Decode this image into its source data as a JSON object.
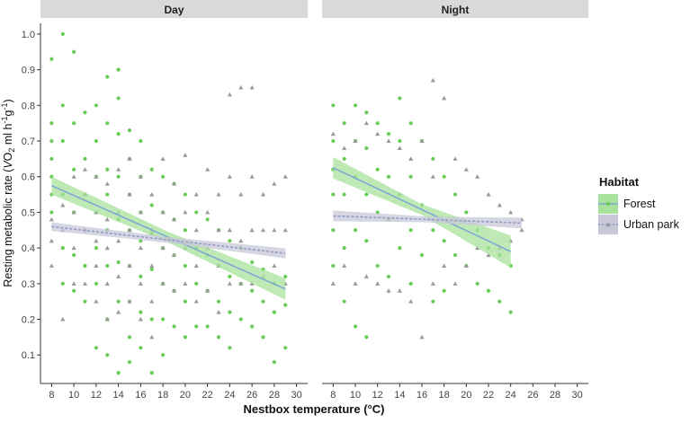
{
  "chart_data": {
    "type": "scatter",
    "panels": [
      {
        "name": "Day",
        "xlim": [
          7,
          31
        ],
        "xticks": [
          8,
          10,
          12,
          14,
          16,
          18,
          20,
          22,
          24,
          26,
          28,
          30
        ]
      },
      {
        "name": "Night",
        "xlim": [
          7,
          31
        ],
        "xticks": [
          8,
          10,
          12,
          14,
          16,
          18,
          20,
          22,
          24,
          26,
          28,
          30
        ]
      }
    ],
    "ylim": [
      0.02,
      1.03
    ],
    "yticks": [
      "0.1",
      "0.2",
      "0.3",
      "0.4",
      "0.5",
      "0.6",
      "0.7",
      "0.8",
      "0.9",
      "1.0"
    ],
    "xlabel": "Nestbox temperature (°C)",
    "ylabel": {
      "main": "Resting metabolic rate (",
      "italic": "V",
      "o2": "O",
      "o2sub": "2",
      "unit": " ml h",
      "exp1": "-1",
      "g": "g",
      "exp2": "-1",
      "close": ")"
    },
    "legend": {
      "title": "Habitat",
      "position": "right",
      "entries": [
        {
          "name": "Forest",
          "color": "#66cc55",
          "band": "#a8e29c",
          "line": "#7aa6d4",
          "shape": "circle"
        },
        {
          "name": "Urban park",
          "color": "#9a9a9a",
          "band": "#c8c8d8",
          "line": "#8f98c4",
          "shape": "triangle"
        }
      ]
    },
    "fits": [
      {
        "panel": "Day",
        "group": "Forest",
        "x": [
          8,
          29
        ],
        "y": [
          0.575,
          0.285
        ],
        "ci_halfwidth": [
          0.025,
          0.015,
          0.03
        ]
      },
      {
        "panel": "Day",
        "group": "Urban park",
        "x": [
          8,
          29
        ],
        "y": [
          0.46,
          0.385
        ],
        "ci_halfwidth": [
          0.012,
          0.008,
          0.014
        ]
      },
      {
        "panel": "Night",
        "group": "Forest",
        "x": [
          8,
          24
        ],
        "y": [
          0.625,
          0.39
        ],
        "ci_halfwidth": [
          0.03,
          0.015,
          0.045
        ]
      },
      {
        "panel": "Night",
        "group": "Urban park",
        "x": [
          8,
          25
        ],
        "y": [
          0.49,
          0.47
        ],
        "ci_halfwidth": [
          0.015,
          0.008,
          0.015
        ]
      }
    ],
    "series": [
      {
        "panel": "Day",
        "name": "Forest",
        "x": [
          8,
          8,
          8,
          8,
          8,
          8,
          8,
          9,
          9,
          9,
          9,
          9,
          9,
          10,
          10,
          10,
          10,
          10,
          10,
          11,
          11,
          11,
          11,
          11,
          11,
          12,
          12,
          12,
          12,
          12,
          12,
          12,
          13,
          13,
          13,
          13,
          13,
          13,
          13,
          13,
          14,
          14,
          14,
          14,
          14,
          14,
          14,
          14,
          15,
          15,
          15,
          15,
          15,
          15,
          15,
          15,
          16,
          16,
          16,
          16,
          16,
          16,
          16,
          17,
          17,
          17,
          17,
          17,
          17,
          18,
          18,
          18,
          18,
          18,
          18,
          19,
          19,
          19,
          19,
          19,
          20,
          20,
          20,
          20,
          20,
          21,
          21,
          21,
          21,
          22,
          22,
          22,
          22,
          23,
          23,
          23,
          23,
          24,
          24,
          24,
          24,
          25,
          25,
          25,
          26,
          26,
          26,
          27,
          27,
          27,
          28,
          28,
          28,
          29,
          29,
          29
        ],
        "y": [
          0.93,
          0.75,
          0.7,
          0.65,
          0.6,
          0.55,
          0.5,
          1.0,
          0.8,
          0.7,
          0.55,
          0.4,
          0.3,
          0.95,
          0.75,
          0.62,
          0.5,
          0.38,
          0.28,
          0.78,
          0.65,
          0.55,
          0.45,
          0.35,
          0.25,
          0.8,
          0.7,
          0.6,
          0.5,
          0.4,
          0.3,
          0.12,
          0.88,
          0.75,
          0.62,
          0.55,
          0.45,
          0.35,
          0.2,
          0.1,
          0.9,
          0.82,
          0.72,
          0.6,
          0.48,
          0.36,
          0.25,
          0.05,
          0.73,
          0.65,
          0.55,
          0.45,
          0.35,
          0.25,
          0.15,
          0.08,
          0.7,
          0.6,
          0.5,
          0.42,
          0.32,
          0.22,
          0.12,
          0.62,
          0.52,
          0.44,
          0.34,
          0.2,
          0.05,
          0.6,
          0.5,
          0.4,
          0.3,
          0.2,
          0.1,
          0.58,
          0.48,
          0.38,
          0.28,
          0.18,
          0.55,
          0.45,
          0.35,
          0.25,
          0.15,
          0.5,
          0.4,
          0.3,
          0.18,
          0.48,
          0.38,
          0.28,
          0.18,
          0.45,
          0.35,
          0.25,
          0.15,
          0.42,
          0.32,
          0.22,
          0.12,
          0.4,
          0.3,
          0.2,
          0.36,
          0.28,
          0.18,
          0.34,
          0.25,
          0.15,
          0.3,
          0.22,
          0.08,
          0.32,
          0.24,
          0.12
        ]
      },
      {
        "panel": "Day",
        "name": "Urban park",
        "x": [
          8,
          8,
          8,
          9,
          9,
          9,
          10,
          10,
          10,
          10,
          11,
          11,
          11,
          11,
          12,
          12,
          12,
          12,
          12,
          13,
          13,
          13,
          13,
          13,
          14,
          14,
          14,
          14,
          14,
          15,
          15,
          15,
          15,
          15,
          16,
          16,
          16,
          16,
          16,
          17,
          17,
          17,
          17,
          17,
          18,
          18,
          18,
          18,
          19,
          19,
          19,
          19,
          20,
          20,
          20,
          20,
          21,
          21,
          21,
          21,
          22,
          22,
          22,
          22,
          23,
          23,
          23,
          23,
          24,
          24,
          24,
          24,
          25,
          25,
          25,
          25,
          26,
          26,
          26,
          26,
          27,
          27,
          27,
          28,
          28,
          28,
          29,
          29,
          29
        ],
        "y": [
          0.48,
          0.42,
          0.35,
          0.52,
          0.45,
          0.2,
          0.6,
          0.5,
          0.4,
          0.3,
          0.62,
          0.55,
          0.45,
          0.3,
          0.6,
          0.5,
          0.42,
          0.35,
          0.25,
          0.58,
          0.48,
          0.4,
          0.3,
          0.2,
          0.62,
          0.5,
          0.42,
          0.32,
          0.22,
          0.65,
          0.55,
          0.45,
          0.35,
          0.25,
          0.6,
          0.5,
          0.4,
          0.3,
          0.2,
          0.55,
          0.45,
          0.35,
          0.25,
          0.15,
          0.65,
          0.5,
          0.4,
          0.3,
          0.58,
          0.48,
          0.38,
          0.28,
          0.66,
          0.5,
          0.4,
          0.3,
          0.55,
          0.45,
          0.35,
          0.25,
          0.62,
          0.5,
          0.4,
          0.28,
          0.55,
          0.45,
          0.35,
          0.22,
          0.83,
          0.6,
          0.45,
          0.3,
          0.85,
          0.55,
          0.42,
          0.3,
          0.85,
          0.6,
          0.45,
          0.3,
          0.55,
          0.45,
          0.32,
          0.58,
          0.45,
          0.35,
          0.6,
          0.45,
          0.3
        ]
      },
      {
        "panel": "Night",
        "name": "Forest",
        "x": [
          8,
          8,
          8,
          8,
          8,
          8,
          9,
          9,
          9,
          9,
          9,
          10,
          10,
          10,
          10,
          10,
          11,
          11,
          11,
          11,
          11,
          12,
          12,
          12,
          12,
          13,
          13,
          13,
          13,
          14,
          14,
          14,
          14,
          15,
          15,
          15,
          15,
          16,
          16,
          16,
          17,
          17,
          17,
          18,
          18,
          18,
          19,
          19,
          20,
          20,
          21,
          21,
          22,
          22,
          23,
          23,
          24,
          24
        ],
        "y": [
          0.8,
          0.7,
          0.62,
          0.55,
          0.45,
          0.35,
          0.75,
          0.65,
          0.55,
          0.4,
          0.25,
          0.8,
          0.7,
          0.6,
          0.45,
          0.18,
          0.78,
          0.68,
          0.55,
          0.42,
          0.15,
          0.75,
          0.62,
          0.5,
          0.35,
          0.72,
          0.6,
          0.48,
          0.32,
          0.82,
          0.7,
          0.55,
          0.4,
          0.75,
          0.6,
          0.45,
          0.3,
          0.7,
          0.52,
          0.38,
          0.65,
          0.45,
          0.25,
          0.6,
          0.42,
          0.28,
          0.55,
          0.38,
          0.5,
          0.35,
          0.45,
          0.3,
          0.4,
          0.28,
          0.38,
          0.25,
          0.35,
          0.22
        ]
      },
      {
        "panel": "Night",
        "name": "Urban park",
        "x": [
          8,
          8,
          9,
          9,
          10,
          10,
          11,
          11,
          12,
          12,
          13,
          13,
          14,
          14,
          15,
          15,
          16,
          16,
          17,
          17,
          17,
          18,
          18,
          19,
          19,
          20,
          20,
          21,
          21,
          22,
          22,
          23,
          23,
          24,
          24,
          25,
          25
        ],
        "y": [
          0.72,
          0.3,
          0.68,
          0.35,
          0.7,
          0.3,
          0.75,
          0.32,
          0.72,
          0.3,
          0.7,
          0.28,
          0.68,
          0.28,
          0.65,
          0.25,
          0.7,
          0.15,
          0.87,
          0.6,
          0.3,
          0.82,
          0.35,
          0.65,
          0.3,
          0.62,
          0.35,
          0.6,
          0.4,
          0.55,
          0.38,
          0.52,
          0.4,
          0.5,
          0.42,
          0.48,
          0.45
        ]
      }
    ]
  }
}
